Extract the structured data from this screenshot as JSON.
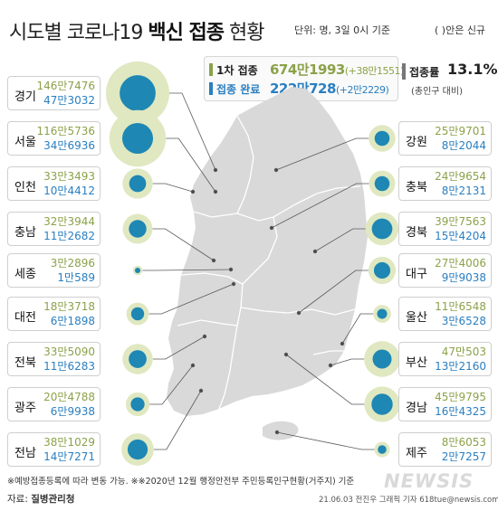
{
  "title": {
    "part1": "시도별 코로나19 ",
    "part2": "백신 접종",
    "part3": " 현황"
  },
  "unit_text": "단위: 명, 3일 0시 기준",
  "paren_note": "(  )안은 신규",
  "legend": {
    "first_label": "1차 접종",
    "first_value": "674만1993",
    "first_new": "(+38만1551)",
    "done_label": "접종 완료",
    "done_value": "222만728",
    "done_new": "(+2만2229)"
  },
  "rate": {
    "label": "접종률",
    "value": "13.1%",
    "sub": "(총인구 대비)"
  },
  "colors": {
    "first": "#8ba24a",
    "done": "#2a7fc0",
    "outer_circle": "#dfe8c0",
    "inner_circle": "#1e87b4",
    "map": "#d9d9d9"
  },
  "chart_data": {
    "type": "bubble-map",
    "series": [
      {
        "name": "1차 접종",
        "key": "first_display"
      },
      {
        "name": "접종 완료",
        "key": "done_display"
      }
    ],
    "regions": [
      {
        "id": "gyeonggi",
        "name": "경기",
        "first_display": "146만7476",
        "done_display": "47만3032",
        "first": 1467476,
        "done": 473032
      },
      {
        "id": "seoul",
        "name": "서울",
        "first_display": "116만5736",
        "done_display": "34만6936",
        "first": 1165736,
        "done": 346936
      },
      {
        "id": "incheon",
        "name": "인천",
        "first_display": "33만3493",
        "done_display": "10만4412",
        "first": 333493,
        "done": 104412
      },
      {
        "id": "chungnam",
        "name": "충남",
        "first_display": "32만3944",
        "done_display": "11만2682",
        "first": 323944,
        "done": 112682
      },
      {
        "id": "sejong",
        "name": "세종",
        "first_display": "3만2896",
        "done_display": "1만589",
        "first": 32896,
        "done": 10589
      },
      {
        "id": "daejeon",
        "name": "대전",
        "first_display": "18만3718",
        "done_display": "6만1898",
        "first": 183718,
        "done": 61898
      },
      {
        "id": "jeonbuk",
        "name": "전북",
        "first_display": "33만5090",
        "done_display": "11만6283",
        "first": 335090,
        "done": 116283
      },
      {
        "id": "gwangju",
        "name": "광주",
        "first_display": "20만4788",
        "done_display": "6만9938",
        "first": 204788,
        "done": 69938
      },
      {
        "id": "jeonnam",
        "name": "전남",
        "first_display": "38만1029",
        "done_display": "14만7271",
        "first": 381029,
        "done": 147271
      },
      {
        "id": "gangwon",
        "name": "강원",
        "first_display": "25만9701",
        "done_display": "8만2044",
        "first": 259701,
        "done": 82044
      },
      {
        "id": "chungbuk",
        "name": "충북",
        "first_display": "24만9654",
        "done_display": "8만2131",
        "first": 249654,
        "done": 82131
      },
      {
        "id": "gyeongbuk",
        "name": "경북",
        "first_display": "39만7563",
        "done_display": "15만4204",
        "first": 397563,
        "done": 154204
      },
      {
        "id": "daegu",
        "name": "대구",
        "first_display": "27만4006",
        "done_display": "9만9038",
        "first": 274006,
        "done": 99038
      },
      {
        "id": "ulsan",
        "name": "울산",
        "first_display": "11만6548",
        "done_display": "3만6528",
        "first": 116548,
        "done": 36528
      },
      {
        "id": "busan",
        "name": "부산",
        "first_display": "47만503",
        "done_display": "13만2160",
        "first": 470503,
        "done": 132160
      },
      {
        "id": "gyeongnam",
        "name": "경남",
        "first_display": "45만9795",
        "done_display": "16만4325",
        "first": 459795,
        "done": 164325
      },
      {
        "id": "jeju",
        "name": "제주",
        "first_display": "8만6053",
        "done_display": "2만7257",
        "first": 86053,
        "done": 27257
      }
    ]
  },
  "footnote": "※예방접종등록에 따라 변동 가능. ※※2020년 12월 행정안전부 주민등록인구현황(거주지) 기준",
  "source": {
    "prefix": "자료: ",
    "name": "질병관리청"
  },
  "credit": "21.06.03 전진우 그래픽 기자 618tue@newsis.com",
  "watermark": "NEWSIS"
}
